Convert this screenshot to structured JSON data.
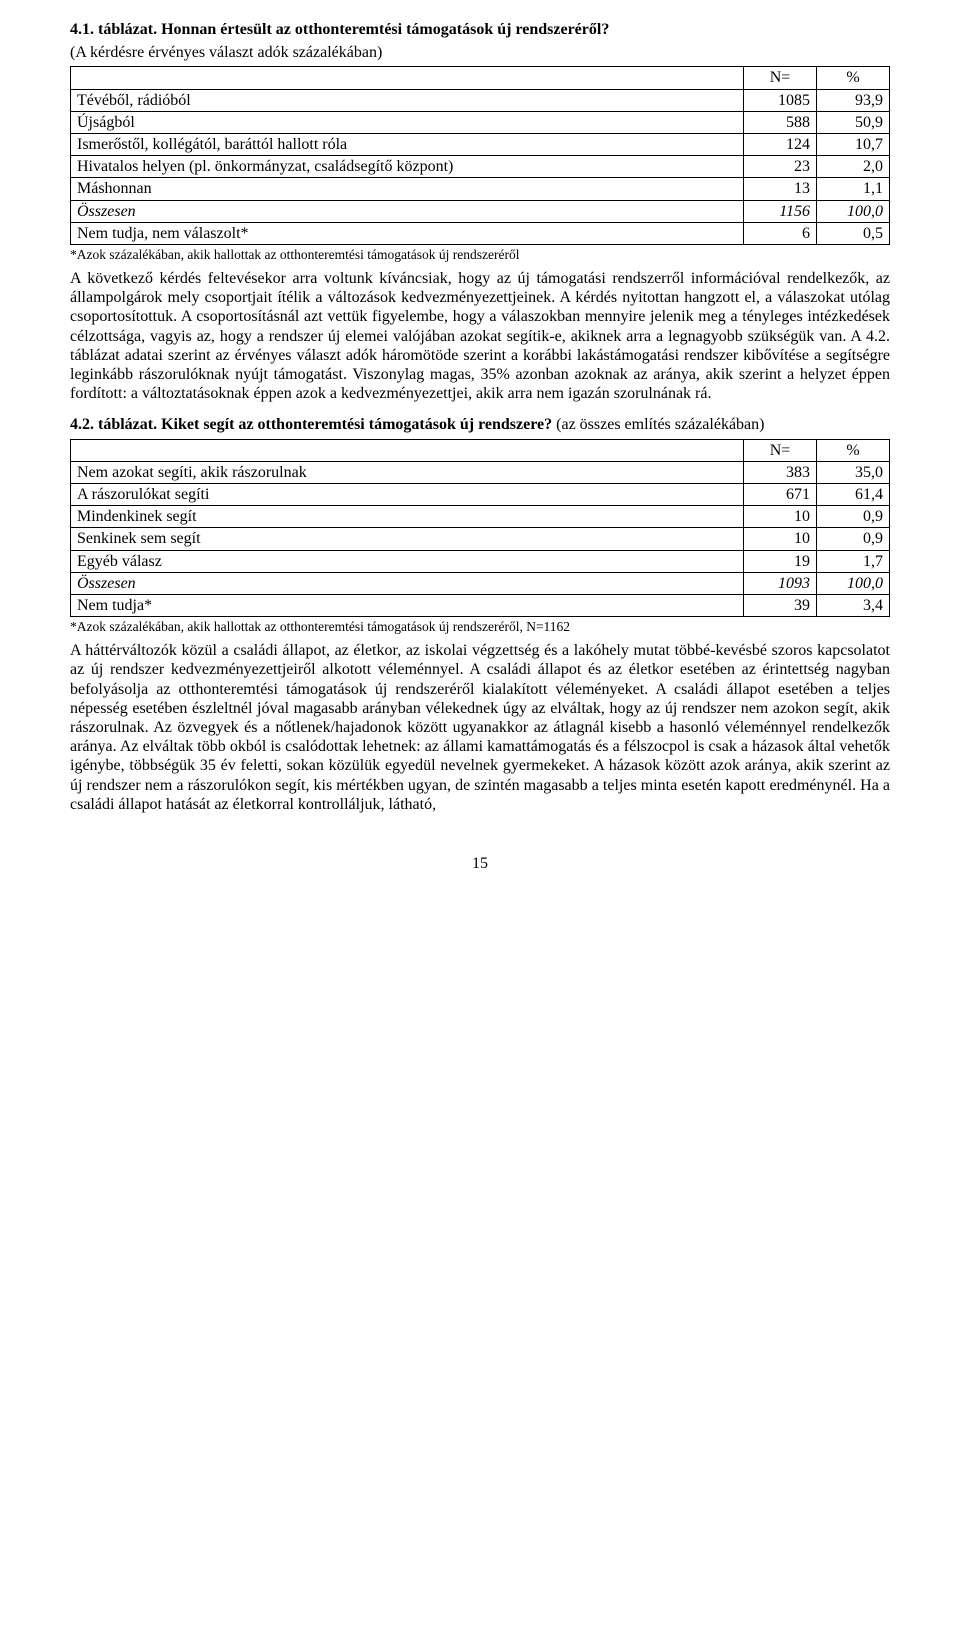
{
  "table1": {
    "title_bold": "4.1. táblázat. Honnan értesült az otthonteremtési támogatások új rendszeréről?",
    "subtitle": "(A kérdésre érvényes választ adók százalékában)",
    "head_n": "N=",
    "head_p": "%",
    "rows": [
      {
        "label": "Tévéből, rádióból",
        "n": "1085",
        "p": "93,9",
        "italic": false
      },
      {
        "label": "Újságból",
        "n": "588",
        "p": "50,9",
        "italic": false
      },
      {
        "label": "Ismerőstől, kollégától, baráttól hallott róla",
        "n": "124",
        "p": "10,7",
        "italic": false
      },
      {
        "label": "Hivatalos helyen (pl. önkormányzat, családsegítő központ)",
        "n": "23",
        "p": "2,0",
        "italic": false
      },
      {
        "label": "Máshonnan",
        "n": "13",
        "p": "1,1",
        "italic": false
      },
      {
        "label": "Összesen",
        "n": "1156",
        "p": "100,0",
        "italic": true
      },
      {
        "label": "Nem tudja, nem válaszolt*",
        "n": "6",
        "p": "0,5",
        "italic": false
      }
    ],
    "footnote": "*Azok százalékában, akik hallottak az otthonteremtési támogatások új rendszeréről"
  },
  "para1": "A következő kérdés feltevésekor arra voltunk kíváncsiak, hogy az új támogatási rendszerről információval rendelkezők, az állampolgárok mely csoportjait ítélik a változások kedvezményezettjeinek. A kérdés nyitottan hangzott el, a válaszokat utólag csoportosítottuk. A csoportosításnál azt vettük figyelembe, hogy a válaszokban mennyire jelenik meg a tényleges intézkedések célzottsága, vagyis az, hogy a rendszer új elemei valójában azokat segítik-e, akiknek arra a legnagyobb szükségük van. A 4.2. táblázat adatai szerint az érvényes választ adók háromötöde szerint a korábbi lakástámogatási rendszer kibővítése a segítségre leginkább rászorulóknak nyújt támogatást. Viszonylag magas, 35% azonban azoknak az aránya, akik szerint a helyzet éppen fordított: a változtatásoknak éppen azok a kedvezményezettjei, akik arra nem igazán szorulnának rá.",
  "table2": {
    "title_bold": "4.2. táblázat. Kiket segít az otthonteremtési támogatások új rendszere?",
    "title_tail": " (az összes említés százalékában)",
    "head_n": "N=",
    "head_p": "%",
    "rows": [
      {
        "label": "Nem azokat segíti, akik rászorulnak",
        "n": "383",
        "p": "35,0",
        "italic": false
      },
      {
        "label": "A rászorulókat segíti",
        "n": "671",
        "p": "61,4",
        "italic": false
      },
      {
        "label": "Mindenkinek segít",
        "n": "10",
        "p": "0,9",
        "italic": false
      },
      {
        "label": "Senkinek sem segít",
        "n": "10",
        "p": "0,9",
        "italic": false
      },
      {
        "label": "Egyéb válasz",
        "n": "19",
        "p": "1,7",
        "italic": false
      },
      {
        "label": "Összesen",
        "n": "1093",
        "p": "100,0",
        "italic": true
      },
      {
        "label": "Nem tudja*",
        "n": "39",
        "p": "3,4",
        "italic": false
      }
    ],
    "footnote": "*Azok százalékában, akik hallottak az otthonteremtési támogatások új rendszeréről, N=1162"
  },
  "para2": "A háttérváltozók közül a családi állapot, az életkor, az iskolai végzettség és a lakóhely mutat többé-kevésbé szoros kapcsolatot az új rendszer kedvezményezettjeiről alkotott véleménnyel. A családi állapot és az életkor esetében az érintettség nagyban befolyásolja az otthonteremtési támogatások új rendszeréről kialakított véleményeket. A családi állapot esetében a teljes népesség esetében észleltnél jóval magasabb arányban vélekednek úgy az elváltak, hogy az új rendszer nem azokon segít, akik rászorulnak. Az özvegyek és a nőtlenek/hajadonok között ugyanakkor az átlagnál kisebb a hasonló véleménnyel rendelkezők aránya. Az elváltak több okból is csalódottak lehetnek: az állami kamattámogatás és a félszocpol is csak a házasok által vehetők igénybe, többségük 35 év feletti, sokan közülük egyedül nevelnek gyermekeket. A házasok között azok aránya, akik szerint az új rendszer nem a rászorulókon segít, kis mértékben ugyan, de szintén magasabb a teljes minta esetén kapott eredménynél. Ha a családi állapot hatását az életkorral kontrolláljuk, látható,",
  "pagenum": "15"
}
